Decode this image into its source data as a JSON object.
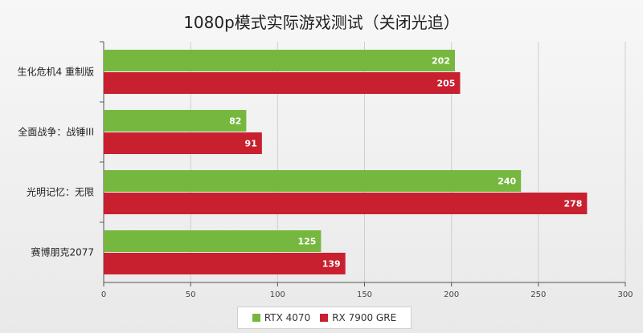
{
  "chart_data": {
    "type": "bar",
    "orientation": "horizontal",
    "title": "1080p模式实际游戏测试（关闭光追）",
    "categories": [
      "生化危机4 重制版",
      "全面战争：战锤III",
      "光明记忆：无限",
      "赛博朋克2077"
    ],
    "series": [
      {
        "name": "RTX 4070",
        "color": "#76b83f",
        "values": [
          202,
          82,
          240,
          125
        ]
      },
      {
        "name": "RX 7900 GRE",
        "color": "#c8202f",
        "values": [
          205,
          91,
          278,
          139
        ]
      }
    ],
    "xlim": [
      0,
      300
    ],
    "xticks": [
      0,
      50,
      100,
      150,
      200,
      250,
      300
    ],
    "grid": true,
    "legend_position": "bottom"
  }
}
